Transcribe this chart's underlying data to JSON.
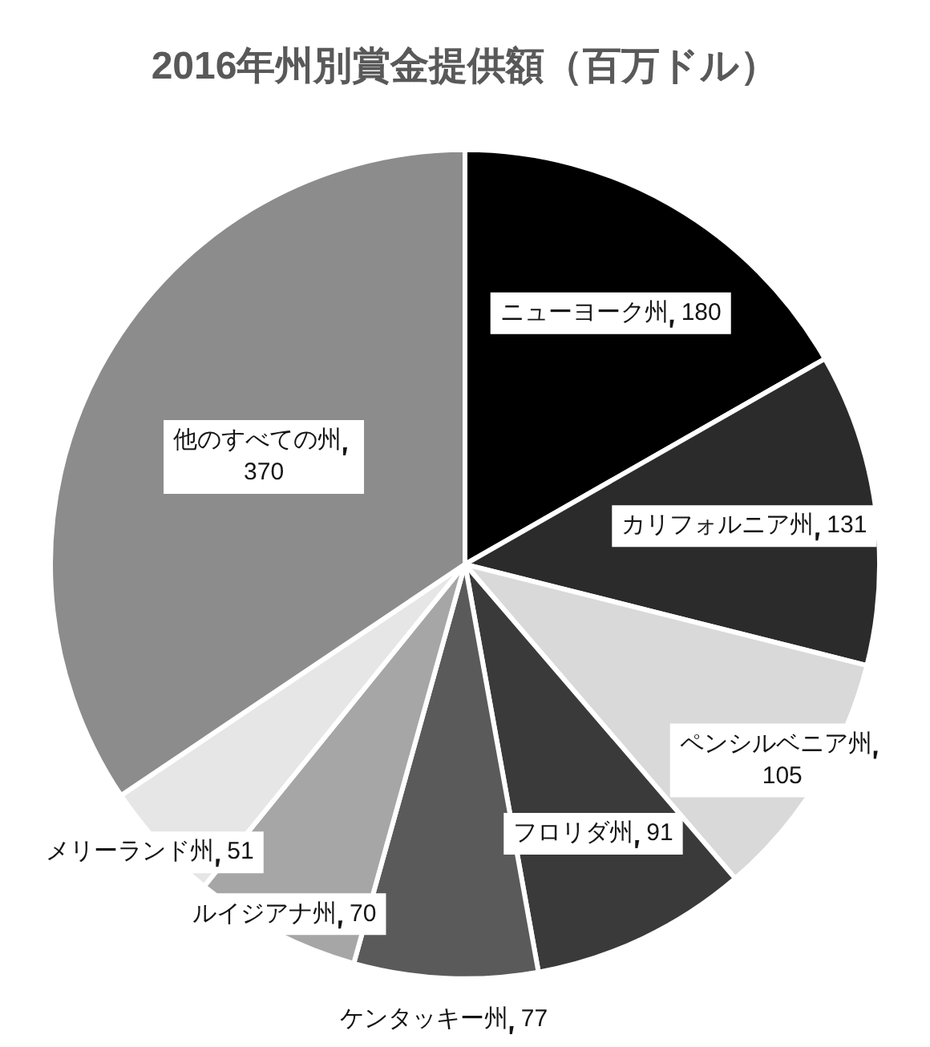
{
  "chart_data": {
    "type": "pie",
    "title": "2016年州別賞金提供額（百万ドル）",
    "categories": [
      "ニューヨーク州",
      "カリフォルニア州",
      "ペンシルベニア州",
      "フロリダ州",
      "ケンタッキー州",
      "ルイジアナ州",
      "メリーランド州",
      "他のすべての州"
    ],
    "values": [
      180,
      131,
      105,
      91,
      77,
      70,
      51,
      370
    ],
    "colors": [
      "#000000",
      "#2b2b2b",
      "#d9d9d9",
      "#3a3a3a",
      "#5a5a5a",
      "#a6a6a6",
      "#e6e6e6",
      "#8c8c8c"
    ],
    "data_labels": true,
    "legend": false
  }
}
